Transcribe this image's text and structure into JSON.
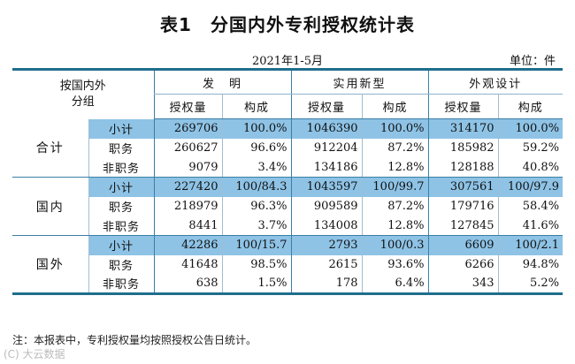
{
  "title": "表1　分国内外专利授权统计表",
  "period": "2021年1-5月",
  "unit": "单位：件",
  "table": {
    "corner_label_line1": "按国内外",
    "corner_label_line2": "分组",
    "groups": [
      "发　明",
      "实用新型",
      "外观设计"
    ],
    "sub_headers": [
      "授权量",
      "构成",
      "授权量",
      "构成",
      "授权量",
      "构成"
    ],
    "regions": [
      {
        "name": "合计",
        "rows": [
          {
            "label": "小计",
            "cells": [
              "269706",
              "100.0%",
              "1046390",
              "100.0%",
              "314170",
              "100.0%"
            ]
          },
          {
            "label": "职务",
            "cells": [
              "260627",
              "96.6%",
              "912204",
              "87.2%",
              "185982",
              "59.2%"
            ]
          },
          {
            "label": "非职务",
            "cells": [
              "9079",
              "3.4%",
              "134186",
              "12.8%",
              "128188",
              "40.8%"
            ]
          }
        ]
      },
      {
        "name": "国内",
        "rows": [
          {
            "label": "小计",
            "cells": [
              "227420",
              "100/84.3",
              "1043597",
              "100/99.7",
              "307561",
              "100/97.9"
            ]
          },
          {
            "label": "职务",
            "cells": [
              "218979",
              "96.3%",
              "909589",
              "87.2%",
              "179716",
              "58.4%"
            ]
          },
          {
            "label": "非职务",
            "cells": [
              "8441",
              "3.7%",
              "134008",
              "12.8%",
              "127845",
              "41.6%"
            ]
          }
        ]
      },
      {
        "name": "国外",
        "rows": [
          {
            "label": "小计",
            "cells": [
              "42286",
              "100/15.7",
              "2793",
              "100/0.3",
              "6609",
              "100/2.1"
            ]
          },
          {
            "label": "职务",
            "cells": [
              "41648",
              "98.5%",
              "2615",
              "93.6%",
              "6266",
              "94.8%"
            ]
          },
          {
            "label": "非职务",
            "cells": [
              "638",
              "1.5%",
              "178",
              "6.4%",
              "343",
              "5.2%"
            ]
          }
        ]
      }
    ]
  },
  "note": "注：本报表中，专利授权量均按照授权公告日统计。",
  "watermark": "(C) 大云数据"
}
